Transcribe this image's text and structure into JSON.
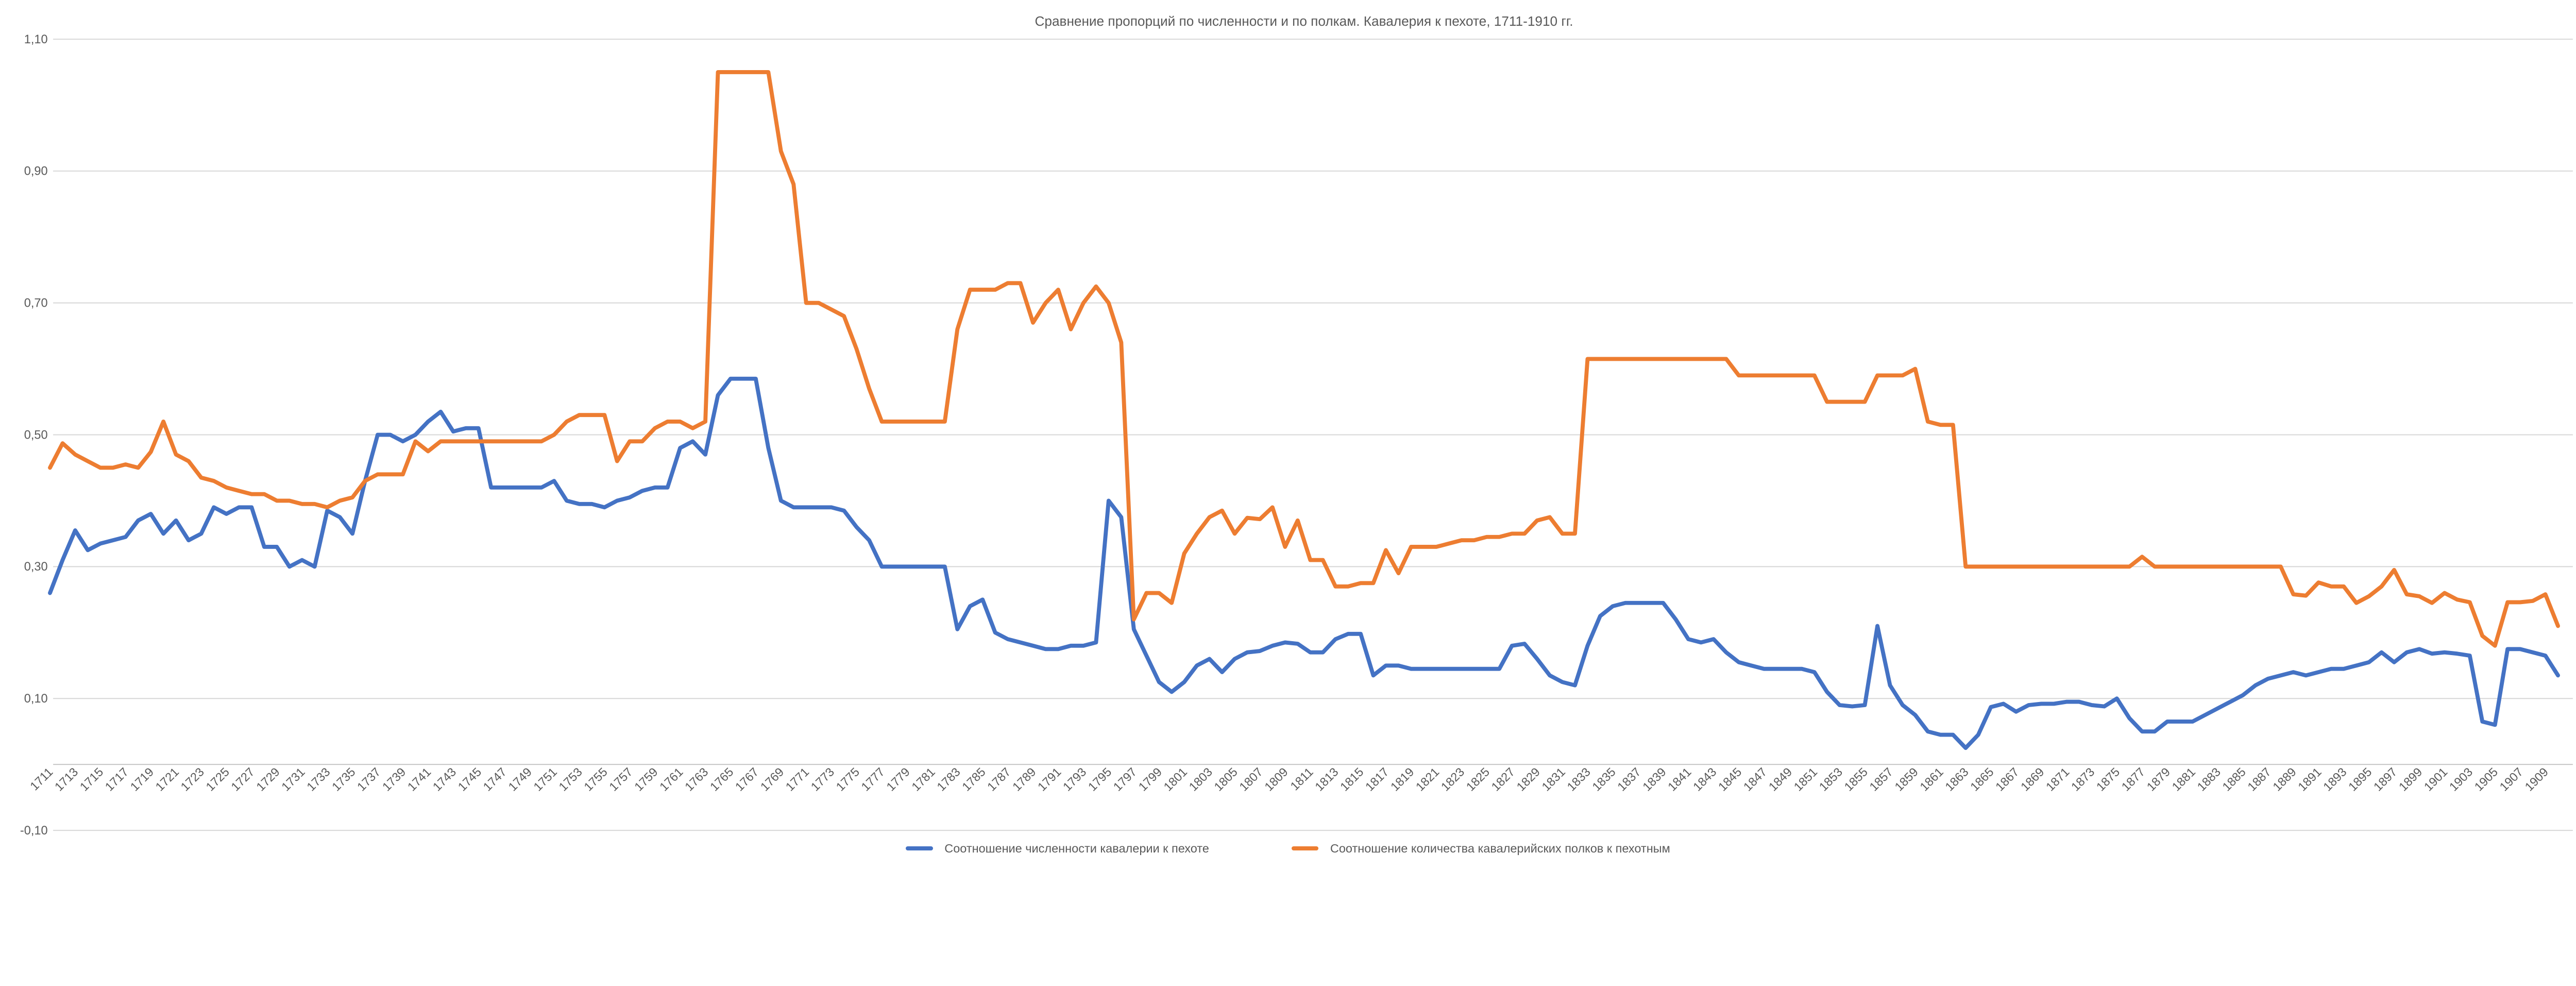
{
  "title": "Сравнение пропорций по численности и по полкам. Кавалерия к пехоте, 1711-1910 гг.",
  "colors": {
    "series_blue": "#4472C4",
    "series_orange": "#ED7D31",
    "gridline": "#D9D9D9",
    "axis_line": "#C6C6C6",
    "text": "#595959"
  },
  "chart_data": {
    "type": "line",
    "title": "Сравнение пропорций по численности и по полкам. Кавалерия к пехоте, 1711-1910 гг.",
    "x_start": 1711,
    "x_end": 1910,
    "x_tick_step": 2,
    "x_tick_first": 1711,
    "x_tick_last": 1909,
    "ylim": [
      -0.1,
      1.1
    ],
    "y_ticks": [
      1.1,
      0.9,
      0.7,
      0.5,
      0.3,
      0.1,
      -0.1
    ],
    "y_tick_labels": [
      "1,10",
      "0,90",
      "0,70",
      "0,50",
      "0,30",
      "0,10",
      "-0,10"
    ],
    "grid": true,
    "legend_position": "bottom",
    "series": [
      {
        "name": "Соотношение численности кавалерии к пехоте",
        "color": "#4472C4",
        "values": [
          0.26,
          0.31,
          0.355,
          0.325,
          0.335,
          0.34,
          0.345,
          0.37,
          0.38,
          0.35,
          0.37,
          0.34,
          0.35,
          0.39,
          0.38,
          0.39,
          0.39,
          0.33,
          0.33,
          0.3,
          0.31,
          0.3,
          0.385,
          0.375,
          0.35,
          0.43,
          0.5,
          0.5,
          0.49,
          0.5,
          0.52,
          0.535,
          0.505,
          0.51,
          0.51,
          0.42,
          0.42,
          0.42,
          0.42,
          0.42,
          0.43,
          0.4,
          0.395,
          0.395,
          0.39,
          0.4,
          0.405,
          0.415,
          0.42,
          0.42,
          0.48,
          0.49,
          0.47,
          0.56,
          0.585,
          0.585,
          0.585,
          0.48,
          0.4,
          0.39,
          0.39,
          0.39,
          0.39,
          0.385,
          0.36,
          0.34,
          0.3,
          0.3,
          0.3,
          0.3,
          0.3,
          0.3,
          0.205,
          0.24,
          0.25,
          0.2,
          0.19,
          0.185,
          0.18,
          0.175,
          0.175,
          0.18,
          0.18,
          0.185,
          0.4,
          0.375,
          0.205,
          0.165,
          0.125,
          0.11,
          0.125,
          0.15,
          0.16,
          0.14,
          0.16,
          0.17,
          0.172,
          0.18,
          0.185,
          0.183,
          0.17,
          0.17,
          0.19,
          0.198,
          0.198,
          0.135,
          0.15,
          0.15,
          0.145,
          0.145,
          0.145,
          0.145,
          0.145,
          0.145,
          0.145,
          0.145,
          0.18,
          0.183,
          0.16,
          0.135,
          0.125,
          0.12,
          0.18,
          0.225,
          0.24,
          0.245,
          0.245,
          0.245,
          0.245,
          0.22,
          0.19,
          0.185,
          0.19,
          0.17,
          0.155,
          0.15,
          0.145,
          0.145,
          0.145,
          0.145,
          0.14,
          0.11,
          0.09,
          0.088,
          0.09,
          0.21,
          0.12,
          0.09,
          0.075,
          0.05,
          0.045,
          0.045,
          0.025,
          0.045,
          0.087,
          0.092,
          0.08,
          0.09,
          0.092,
          0.092,
          0.095,
          0.095,
          0.09,
          0.088,
          0.1,
          0.07,
          0.05,
          0.05,
          0.065,
          0.065,
          0.065,
          0.075,
          0.085,
          0.095,
          0.105,
          0.12,
          0.13,
          0.135,
          0.14,
          0.135,
          0.14,
          0.145,
          0.145,
          0.15,
          0.155,
          0.17,
          0.155,
          0.17,
          0.175,
          0.168,
          0.17,
          0.168,
          0.165,
          0.065,
          0.06,
          0.175,
          0.175,
          0.17,
          0.165,
          0.135
        ]
      },
      {
        "name": "Соотношение количества кавалерийских полков к пехотным",
        "color": "#ED7D31",
        "values": [
          0.45,
          0.487,
          0.47,
          0.46,
          0.45,
          0.45,
          0.455,
          0.45,
          0.474,
          0.52,
          0.47,
          0.46,
          0.435,
          0.43,
          0.42,
          0.415,
          0.41,
          0.41,
          0.4,
          0.4,
          0.395,
          0.395,
          0.39,
          0.4,
          0.405,
          0.43,
          0.44,
          0.44,
          0.44,
          0.49,
          0.475,
          0.49,
          0.49,
          0.49,
          0.49,
          0.49,
          0.49,
          0.49,
          0.49,
          0.49,
          0.5,
          0.52,
          0.53,
          0.53,
          0.53,
          0.46,
          0.49,
          0.49,
          0.51,
          0.52,
          0.52,
          0.51,
          0.52,
          1.05,
          1.05,
          1.05,
          1.05,
          1.05,
          0.93,
          0.88,
          0.7,
          0.7,
          0.69,
          0.68,
          0.63,
          0.57,
          0.52,
          0.52,
          0.52,
          0.52,
          0.52,
          0.52,
          0.66,
          0.72,
          0.72,
          0.72,
          0.73,
          0.73,
          0.67,
          0.7,
          0.72,
          0.66,
          0.7,
          0.725,
          0.7,
          0.64,
          0.22,
          0.26,
          0.26,
          0.245,
          0.32,
          0.35,
          0.375,
          0.385,
          0.35,
          0.374,
          0.372,
          0.39,
          0.33,
          0.37,
          0.31,
          0.31,
          0.27,
          0.27,
          0.275,
          0.275,
          0.325,
          0.29,
          0.33,
          0.33,
          0.33,
          0.335,
          0.34,
          0.34,
          0.345,
          0.345,
          0.35,
          0.35,
          0.37,
          0.375,
          0.35,
          0.35,
          0.615,
          0.615,
          0.615,
          0.615,
          0.615,
          0.615,
          0.615,
          0.615,
          0.615,
          0.615,
          0.615,
          0.615,
          0.59,
          0.59,
          0.59,
          0.59,
          0.59,
          0.59,
          0.59,
          0.55,
          0.55,
          0.55,
          0.55,
          0.59,
          0.59,
          0.59,
          0.6,
          0.52,
          0.515,
          0.515,
          0.3,
          0.3,
          0.3,
          0.3,
          0.3,
          0.3,
          0.3,
          0.3,
          0.3,
          0.3,
          0.3,
          0.3,
          0.3,
          0.3,
          0.315,
          0.3,
          0.3,
          0.3,
          0.3,
          0.3,
          0.3,
          0.3,
          0.3,
          0.3,
          0.3,
          0.3,
          0.258,
          0.256,
          0.276,
          0.27,
          0.27,
          0.245,
          0.255,
          0.27,
          0.295,
          0.258,
          0.255,
          0.245,
          0.26,
          0.25,
          0.246,
          0.195,
          0.18,
          0.246,
          0.246,
          0.248,
          0.258,
          0.21
        ]
      }
    ]
  },
  "legend": {
    "items": [
      {
        "label": "Соотношение численности кавалерии к пехоте"
      },
      {
        "label": "Соотношение количества кавалерийских полков к пехотным"
      }
    ]
  }
}
